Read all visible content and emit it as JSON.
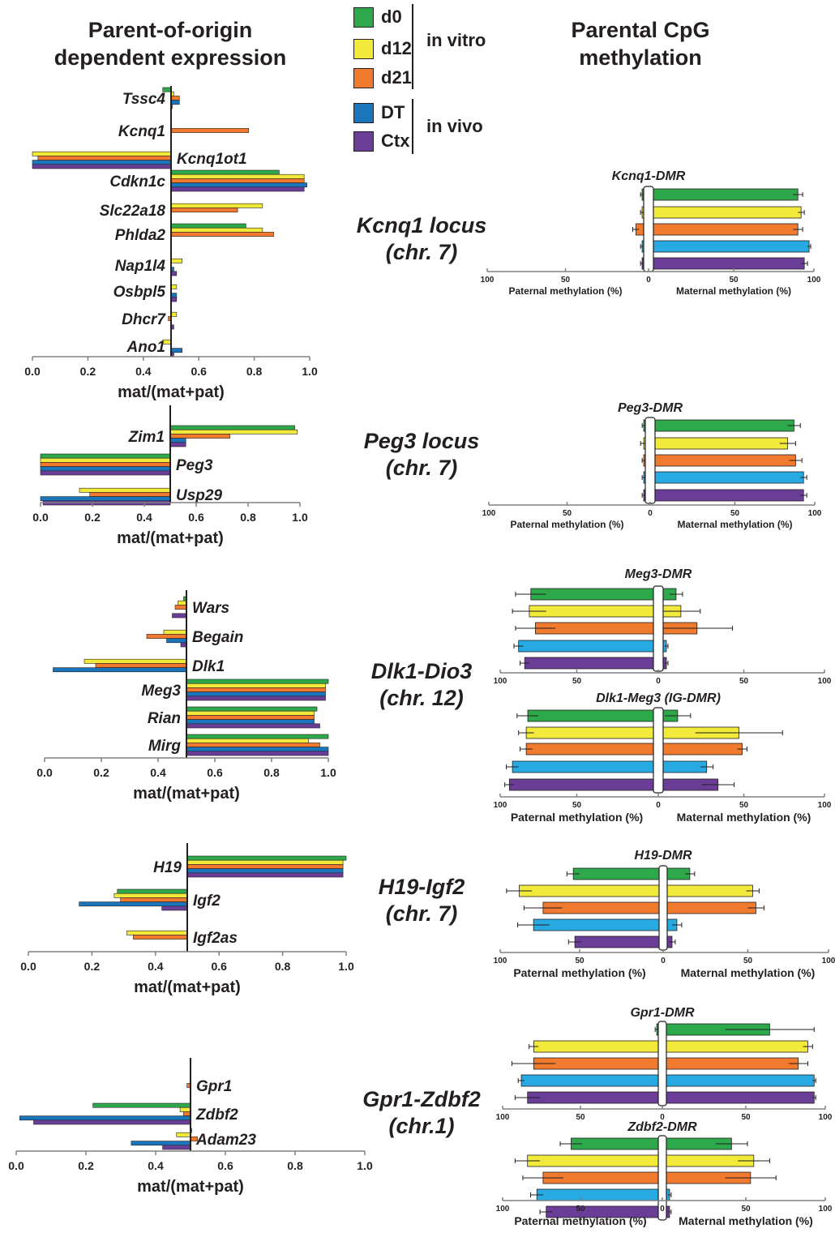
{
  "headers": {
    "left": [
      "Parent-of-origin",
      "dependent expression"
    ],
    "right": [
      "Parental CpG",
      "methylation"
    ]
  },
  "legend": {
    "items": [
      {
        "label": "d0",
        "color": "#2da84a"
      },
      {
        "label": "d12",
        "color": "#f2ea3a"
      },
      {
        "label": "d21",
        "color": "#f07a2e"
      },
      {
        "label": "DT",
        "color": "#1b75bb"
      },
      {
        "label": "Ctx",
        "color": "#6a3d97"
      }
    ],
    "groups": [
      "in vitro",
      "in vivo"
    ]
  },
  "methylation_colors": [
    "#2da84a",
    "#f2ea3a",
    "#f07a2e",
    "#27aae1",
    "#6a3d97"
  ],
  "loci": [
    {
      "name": "Kcnq1 locus",
      "chr": "(chr. 7)"
    },
    {
      "name": "Peg3 locus",
      "chr": "(chr. 7)"
    },
    {
      "name": "Dlk1-Dio3",
      "chr": "(chr. 12)"
    },
    {
      "name": "H19-Igf2",
      "chr": "(chr. 7)"
    },
    {
      "name": "Gpr1-Zdbf2",
      "chr": "(chr.1)"
    }
  ],
  "chart_data": [
    {
      "type": "bar",
      "panel": "expression",
      "locus": "Kcnq1 locus",
      "xlabel": "mat/(mat+pat)",
      "xlim": [
        0,
        1
      ],
      "xticks": [
        "0.0",
        "0.2",
        "0.4",
        "0.6",
        "0.8",
        "1.0"
      ],
      "series_names": [
        "d0",
        "d12",
        "d21",
        "DT",
        "Ctx"
      ],
      "genes": [
        {
          "name": "Tssc4",
          "values": [
            0.47,
            0.51,
            0.53,
            0.53,
            0.5
          ]
        },
        {
          "name": "Kcnq1",
          "values": [
            null,
            null,
            0.78,
            null,
            null
          ]
        },
        {
          "name": "Kcnq1ot1",
          "values": [
            null,
            0.0,
            0.02,
            0.0,
            0.0
          ]
        },
        {
          "name": "Cdkn1c",
          "values": [
            0.89,
            0.98,
            0.98,
            0.99,
            0.98
          ]
        },
        {
          "name": "Slc22a18",
          "values": [
            null,
            0.83,
            0.74,
            null,
            null
          ]
        },
        {
          "name": "Phlda2",
          "values": [
            0.77,
            0.83,
            0.87,
            null,
            null
          ]
        },
        {
          "name": "Nap1l4",
          "values": [
            null,
            0.54,
            null,
            0.51,
            0.52
          ]
        },
        {
          "name": "Osbpl5",
          "values": [
            null,
            0.52,
            null,
            0.52,
            0.52
          ]
        },
        {
          "name": "Dhcr7",
          "values": [
            null,
            0.52,
            0.49,
            null,
            0.51
          ]
        },
        {
          "name": "Ano1",
          "values": [
            null,
            0.47,
            null,
            0.54,
            0.51
          ]
        }
      ]
    },
    {
      "type": "bar",
      "panel": "expression",
      "locus": "Peg3 locus",
      "xlabel": "mat/(mat+pat)",
      "xlim": [
        0,
        1
      ],
      "xticks": [
        "0.0",
        "0.2",
        "0.4",
        "0.6",
        "0.8",
        "1.0"
      ],
      "series_names": [
        "d0",
        "d12",
        "d21",
        "DT",
        "Ctx"
      ],
      "genes": [
        {
          "name": "Zim1",
          "values": [
            0.98,
            0.99,
            0.73,
            0.56,
            0.56
          ]
        },
        {
          "name": "Peg3",
          "values": [
            0.0,
            0.0,
            0.0,
            0.0,
            0.0
          ]
        },
        {
          "name": "Usp29",
          "values": [
            null,
            0.15,
            0.19,
            0.0,
            0.01
          ]
        }
      ]
    },
    {
      "type": "bar",
      "panel": "expression",
      "locus": "Dlk1-Dio3",
      "xlabel": "mat/(mat+pat)",
      "xlim": [
        0,
        1
      ],
      "xticks": [
        "0.0",
        "0.2",
        "0.4",
        "0.6",
        "0.8",
        "1.0"
      ],
      "series_names": [
        "d0",
        "d12",
        "d21",
        "DT",
        "Ctx"
      ],
      "genes": [
        {
          "name": "Wars",
          "values": [
            0.49,
            0.47,
            0.46,
            null,
            0.45
          ]
        },
        {
          "name": "Begain",
          "values": [
            null,
            0.42,
            0.36,
            0.43,
            0.48
          ]
        },
        {
          "name": "Dlk1",
          "values": [
            null,
            0.14,
            0.18,
            0.03,
            null
          ]
        },
        {
          "name": "Meg3",
          "values": [
            1.0,
            0.99,
            0.99,
            0.99,
            0.99
          ]
        },
        {
          "name": "Rian",
          "values": [
            0.96,
            0.95,
            0.95,
            0.95,
            0.97
          ]
        },
        {
          "name": "Mirg",
          "values": [
            1.0,
            0.93,
            0.97,
            1.0,
            1.0
          ]
        }
      ]
    },
    {
      "type": "bar",
      "panel": "expression",
      "locus": "H19-Igf2",
      "xlabel": "mat/(mat+pat)",
      "xlim": [
        0,
        1
      ],
      "xticks": [
        "0.0",
        "0.2",
        "0.4",
        "0.6",
        "0.8",
        "1.0"
      ],
      "series_names": [
        "d0",
        "d12",
        "d21",
        "DT",
        "Ctx"
      ],
      "genes": [
        {
          "name": "H19",
          "values": [
            1.0,
            0.99,
            0.99,
            0.99,
            0.99
          ]
        },
        {
          "name": "Igf2",
          "values": [
            0.28,
            0.27,
            0.29,
            0.16,
            0.42
          ]
        },
        {
          "name": "Igf2as",
          "values": [
            null,
            0.31,
            0.33,
            null,
            null
          ]
        }
      ]
    },
    {
      "type": "bar",
      "panel": "expression",
      "locus": "Gpr1-Zdbf2",
      "xlabel": "mat/(mat+pat)",
      "xlim": [
        0,
        1
      ],
      "xticks": [
        "0.0",
        "0.2",
        "0.4",
        "0.6",
        "0.8",
        "1.0"
      ],
      "series_names": [
        "d0",
        "d12",
        "d21",
        "DT",
        "Ctx"
      ],
      "genes": [
        {
          "name": "Gpr1",
          "values": [
            null,
            null,
            0.49,
            null,
            null
          ]
        },
        {
          "name": "Zdbf2",
          "values": [
            0.22,
            0.47,
            0.48,
            0.01,
            0.05
          ]
        },
        {
          "name": "Adam23",
          "values": [
            0.5,
            0.46,
            0.52,
            0.33,
            0.42
          ]
        }
      ]
    },
    {
      "type": "bar",
      "panel": "methylation",
      "title": "Kcnq1-DMR",
      "xlabel_left": "Paternal methylation (%)",
      "xlabel_right": "Maternal methylation (%)",
      "ticks": [
        "100",
        "50",
        "0",
        "50",
        "100"
      ],
      "paternal": [
        1,
        1,
        5,
        1,
        1
      ],
      "paternal_err": [
        1,
        1,
        2,
        1,
        1
      ],
      "maternal": [
        90,
        92,
        90,
        97,
        94
      ],
      "maternal_err": [
        3,
        2,
        3,
        1,
        2
      ]
    },
    {
      "type": "bar",
      "panel": "methylation",
      "title": "Peg3-DMR",
      "xlabel_left": "Paternal methylation (%)",
      "xlabel_right": "Maternal methylation (%)",
      "ticks": [
        "100",
        "50",
        "0",
        "50",
        "100"
      ],
      "paternal": [
        1,
        1,
        1,
        1,
        1
      ],
      "paternal_err": [
        1,
        2,
        1,
        1,
        1
      ],
      "maternal": [
        87,
        83,
        88,
        93,
        93
      ],
      "maternal_err": [
        4,
        5,
        4,
        2,
        2
      ]
    },
    {
      "type": "bar",
      "panel": "methylation",
      "title": "Meg3-DMR",
      "ticks": [
        "100",
        "50",
        "0",
        "50",
        "100"
      ],
      "paternal": [
        80,
        81,
        77,
        88,
        84
      ],
      "paternal_err": [
        10,
        11,
        13,
        3,
        3
      ],
      "maternal": [
        8,
        11,
        21,
        2,
        2
      ],
      "maternal_err": [
        4,
        12,
        22,
        1,
        1
      ]
    },
    {
      "type": "bar",
      "panel": "methylation",
      "title": "Dlk1-Meg3 (IG-DMR)",
      "xlabel_left": "Paternal methylation (%)",
      "xlabel_right": "Maternal methylation (%)",
      "ticks": [
        "100",
        "50",
        "0",
        "50",
        "100"
      ],
      "paternal": [
        82,
        83,
        83,
        92,
        94
      ],
      "paternal_err": [
        7,
        5,
        4,
        4,
        3
      ],
      "maternal": [
        9,
        47,
        49,
        27,
        34
      ],
      "maternal_err": [
        8,
        27,
        3,
        4,
        10
      ]
    },
    {
      "type": "bar",
      "panel": "methylation",
      "title": "H19-DMR",
      "xlabel_left": "Paternal methylation (%)",
      "xlabel_right": "Maternal methylation (%)",
      "ticks": [
        "100",
        "50",
        "0",
        "50",
        "100"
      ],
      "paternal": [
        54,
        88,
        73,
        79,
        53
      ],
      "paternal_err": [
        4,
        8,
        12,
        10,
        4
      ],
      "maternal": [
        14,
        53,
        55,
        6,
        3
      ],
      "maternal_err": [
        3,
        4,
        5,
        3,
        2
      ]
    },
    {
      "type": "bar",
      "panel": "methylation",
      "title": "Gpr1-DMR",
      "ticks": [
        "100",
        "50",
        "0",
        "50",
        "100"
      ],
      "paternal": [
        1,
        80,
        80,
        88,
        84
      ],
      "paternal_err": [
        1,
        3,
        14,
        2,
        8
      ],
      "maternal": [
        65,
        89,
        83,
        93,
        93
      ],
      "maternal_err": [
        28,
        3,
        6,
        1,
        1
      ]
    },
    {
      "type": "bar",
      "panel": "methylation",
      "title": "Zdbf2-DMR",
      "xlabel_left": "Paternal methylation (%)",
      "xlabel_right": "Maternal methylation (%)",
      "ticks": [
        "100",
        "50",
        "0",
        "50",
        "100"
      ],
      "paternal": [
        56,
        84,
        74,
        78,
        72
      ],
      "paternal_err": [
        7,
        8,
        13,
        4,
        4
      ],
      "maternal": [
        41,
        55,
        53,
        2,
        2
      ],
      "maternal_err": [
        10,
        10,
        16,
        1,
        1
      ]
    }
  ]
}
